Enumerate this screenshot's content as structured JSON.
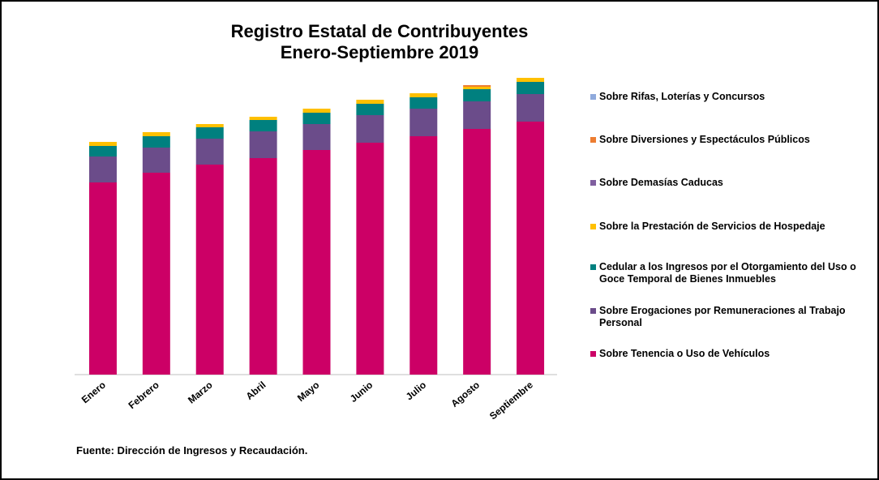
{
  "chart_data": {
    "type": "stacked_bar",
    "title": "Registro Estatal de Contribuyentes",
    "subtitle": "Enero-Septiembre 2019",
    "source": "Fuente: Dirección de Ingresos y Recaudación.",
    "categories": [
      "Enero",
      "Febrero",
      "Marzo",
      "Abril",
      "Mayo",
      "Junio",
      "Julio",
      "Agosto",
      "Septiembre"
    ],
    "ylim": [
      0,
      370
    ],
    "series": [
      {
        "name": "Sobre Tenencia o Uso de Vehículos",
        "color": "#cc0066",
        "values": [
          237,
          249,
          259,
          267,
          277,
          286,
          294,
          303,
          312
        ]
      },
      {
        "name": "Sobre Erogaciones por Remuneraciones al Trabajo Personal",
        "color": "#6b4c8a",
        "values": [
          32,
          31,
          32,
          33,
          32,
          34,
          34,
          34,
          34
        ]
      },
      {
        "name": "Cedular a los Ingresos por el Otorgamiento del Uso o Goce Temporal de Bienes Inmuebles",
        "color": "#00807f",
        "values": [
          13,
          14,
          14,
          14,
          14,
          14,
          14,
          15,
          15
        ]
      },
      {
        "name": "Sobre la Prestación de Servicios de Hospedaje",
        "color": "#ffc000",
        "values": [
          5,
          5,
          4,
          4,
          5,
          5,
          5,
          3,
          5
        ]
      },
      {
        "name": "Sobre Demasías Caducas",
        "color": "#7f5f9f",
        "values": [
          0,
          0,
          0,
          0,
          0,
          0,
          0,
          0,
          0
        ]
      },
      {
        "name": "Sobre Diversiones y Espectáculos Públicos",
        "color": "#ed7d31",
        "values": [
          0,
          0,
          0,
          0,
          0,
          0,
          0,
          2,
          0
        ]
      },
      {
        "name": "Sobre Rifas, Loterías y Concursos",
        "color": "#8faadc",
        "values": [
          0,
          0,
          0,
          0,
          0,
          0,
          0,
          0,
          0
        ]
      }
    ]
  }
}
